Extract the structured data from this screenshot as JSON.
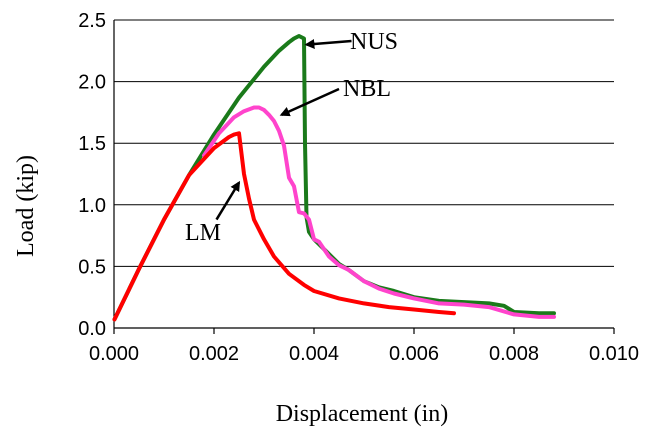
{
  "chart_data": {
    "type": "line",
    "title": "",
    "xlabel": "Displacement (in)",
    "ylabel": "Load (kip)",
    "xlim": [
      0.0,
      0.01
    ],
    "ylim": [
      0.0,
      2.5
    ],
    "xticks": [
      "0.000",
      "0.002",
      "0.004",
      "0.006",
      "0.008",
      "0.010"
    ],
    "yticks": [
      "0.0",
      "0.5",
      "1.0",
      "1.5",
      "2.0",
      "2.5"
    ],
    "grid": "horizontal",
    "legend": "none",
    "series": [
      {
        "name": "NUS",
        "color": "#1a7a1a",
        "x": [
          1e-05,
          0.0005,
          0.001,
          0.0015,
          0.002,
          0.0025,
          0.003,
          0.0033,
          0.0035,
          0.0036,
          0.0037,
          0.0038,
          0.00382,
          0.00385,
          0.0039,
          0.004,
          0.0041,
          0.0043,
          0.0045,
          0.0047,
          0.005,
          0.0053,
          0.0056,
          0.006,
          0.0065,
          0.007,
          0.0075,
          0.0078,
          0.008,
          0.0085,
          0.0088
        ],
        "y": [
          0.07,
          0.48,
          0.88,
          1.24,
          1.57,
          1.87,
          2.12,
          2.25,
          2.32,
          2.35,
          2.37,
          2.35,
          1.5,
          0.9,
          0.78,
          0.72,
          0.68,
          0.6,
          0.52,
          0.47,
          0.38,
          0.33,
          0.3,
          0.25,
          0.22,
          0.21,
          0.2,
          0.18,
          0.13,
          0.12,
          0.12
        ]
      },
      {
        "name": "NBL",
        "color": "#ff44cc",
        "x": [
          0.0018,
          0.0021,
          0.0024,
          0.0026,
          0.0028,
          0.0029,
          0.003,
          0.0031,
          0.0032,
          0.0033,
          0.0034,
          0.0035,
          0.0036,
          0.0037,
          0.0038,
          0.0039,
          0.004,
          0.0041,
          0.0043,
          0.0045,
          0.0047,
          0.005,
          0.0053,
          0.0056,
          0.006,
          0.0065,
          0.007,
          0.0075,
          0.008,
          0.0085,
          0.0088
        ],
        "y": [
          1.4,
          1.58,
          1.71,
          1.76,
          1.79,
          1.79,
          1.77,
          1.73,
          1.68,
          1.6,
          1.48,
          1.22,
          1.15,
          0.94,
          0.93,
          0.88,
          0.72,
          0.7,
          0.58,
          0.51,
          0.47,
          0.38,
          0.32,
          0.28,
          0.24,
          0.2,
          0.19,
          0.17,
          0.11,
          0.09,
          0.09
        ]
      },
      {
        "name": "LM",
        "color": "#ff0000",
        "x": [
          1e-05,
          0.0005,
          0.001,
          0.0015,
          0.002,
          0.0023,
          0.0024,
          0.0025,
          0.0026,
          0.0027,
          0.0028,
          0.003,
          0.0032,
          0.0035,
          0.0038,
          0.004,
          0.0045,
          0.005,
          0.0055,
          0.006,
          0.0065,
          0.0068
        ],
        "y": [
          0.07,
          0.48,
          0.88,
          1.24,
          1.46,
          1.55,
          1.57,
          1.58,
          1.25,
          1.05,
          0.88,
          0.72,
          0.58,
          0.44,
          0.35,
          0.3,
          0.24,
          0.2,
          0.17,
          0.15,
          0.13,
          0.12
        ]
      }
    ],
    "annotations": [
      {
        "text": "NUS",
        "series": "NUS"
      },
      {
        "text": "NBL",
        "series": "NBL"
      },
      {
        "text": "LM",
        "series": "LM"
      }
    ]
  }
}
